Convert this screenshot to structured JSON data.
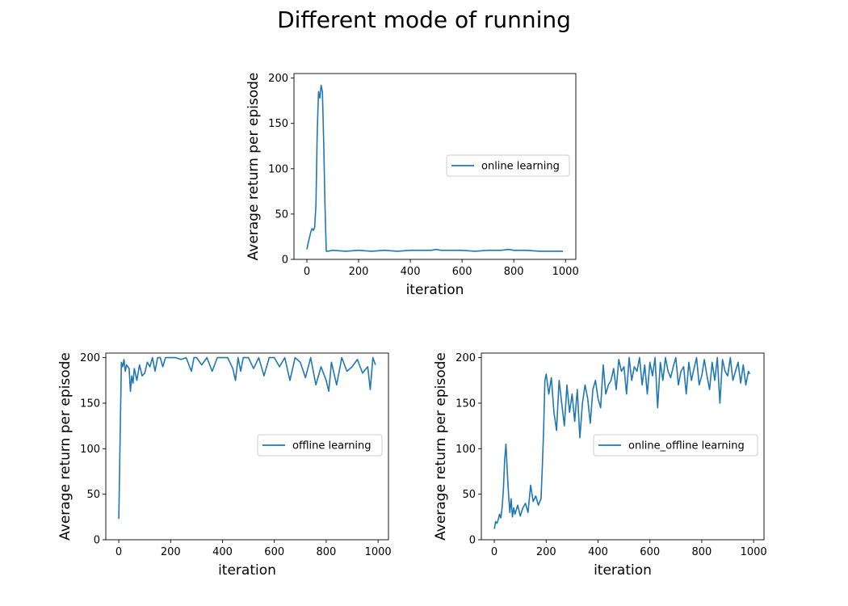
{
  "figure": {
    "title": "Different mode of running"
  },
  "chart_data": [
    {
      "type": "line",
      "xlabel": "iteration",
      "ylabel": "Average return per episode",
      "xlim": [
        -50,
        1040
      ],
      "ylim": [
        0,
        205
      ],
      "xticks": [
        0,
        200,
        400,
        600,
        800,
        1000
      ],
      "yticks": [
        0,
        50,
        100,
        150,
        200
      ],
      "grid": false,
      "legend_position": "center-right",
      "series": [
        {
          "name": "online learning",
          "color": "#1f77b4",
          "x": [
            0,
            5,
            10,
            15,
            20,
            25,
            30,
            35,
            40,
            45,
            50,
            55,
            60,
            65,
            70,
            75,
            80,
            100,
            150,
            200,
            250,
            300,
            350,
            400,
            450,
            480,
            500,
            520,
            560,
            600,
            650,
            700,
            750,
            780,
            800,
            850,
            900,
            950,
            990
          ],
          "y": [
            11,
            18,
            24,
            30,
            34,
            32,
            35,
            60,
            140,
            185,
            178,
            192,
            185,
            130,
            60,
            9,
            9,
            10,
            9,
            10,
            9,
            10,
            9,
            10,
            10,
            10,
            11,
            10,
            10,
            10,
            9,
            10,
            10,
            11,
            10,
            10,
            9,
            9,
            9
          ]
        }
      ]
    },
    {
      "type": "line",
      "xlabel": "iteration",
      "ylabel": "Average return per episode",
      "xlim": [
        -50,
        1040
      ],
      "ylim": [
        0,
        205
      ],
      "xticks": [
        0,
        200,
        400,
        600,
        800,
        1000
      ],
      "yticks": [
        0,
        50,
        100,
        150,
        200
      ],
      "grid": false,
      "legend_position": "center-right",
      "series": [
        {
          "name": "offline learning",
          "color": "#1f77b4",
          "x": [
            0,
            5,
            10,
            15,
            20,
            25,
            30,
            40,
            45,
            50,
            55,
            60,
            70,
            80,
            90,
            100,
            110,
            120,
            130,
            140,
            150,
            160,
            170,
            180,
            200,
            220,
            240,
            260,
            280,
            290,
            300,
            320,
            340,
            360,
            380,
            400,
            420,
            440,
            450,
            460,
            470,
            480,
            500,
            520,
            540,
            560,
            580,
            600,
            620,
            640,
            660,
            680,
            700,
            720,
            740,
            760,
            780,
            800,
            810,
            820,
            840,
            860,
            880,
            900,
            920,
            940,
            960,
            970,
            980,
            990
          ],
          "y": [
            23,
            110,
            195,
            190,
            198,
            185,
            192,
            188,
            163,
            180,
            172,
            188,
            175,
            192,
            180,
            183,
            195,
            190,
            200,
            185,
            200,
            200,
            190,
            200,
            200,
            200,
            198,
            200,
            185,
            200,
            200,
            192,
            200,
            185,
            200,
            200,
            200,
            188,
            175,
            200,
            185,
            200,
            200,
            188,
            200,
            180,
            200,
            200,
            190,
            200,
            175,
            200,
            195,
            178,
            200,
            170,
            190,
            175,
            163,
            195,
            170,
            200,
            185,
            190,
            198,
            183,
            190,
            165,
            200,
            192
          ]
        }
      ]
    },
    {
      "type": "line",
      "xlabel": "iteration",
      "ylabel": "Average return per episode",
      "xlim": [
        -50,
        1040
      ],
      "ylim": [
        0,
        205
      ],
      "xticks": [
        0,
        200,
        400,
        600,
        800,
        1000
      ],
      "yticks": [
        0,
        50,
        100,
        150,
        200
      ],
      "grid": false,
      "legend_position": "center-right",
      "series": [
        {
          "name": "online_offline learning",
          "color": "#1f77b4",
          "x": [
            0,
            5,
            10,
            15,
            20,
            25,
            30,
            35,
            40,
            45,
            50,
            55,
            60,
            65,
            70,
            75,
            80,
            90,
            100,
            110,
            120,
            130,
            140,
            150,
            160,
            170,
            180,
            185,
            190,
            195,
            200,
            210,
            220,
            230,
            240,
            250,
            260,
            270,
            280,
            290,
            300,
            310,
            320,
            330,
            340,
            350,
            360,
            370,
            380,
            390,
            400,
            410,
            420,
            430,
            440,
            450,
            460,
            470,
            480,
            490,
            500,
            510,
            520,
            530,
            540,
            550,
            560,
            570,
            580,
            590,
            600,
            610,
            620,
            630,
            640,
            650,
            660,
            670,
            680,
            690,
            700,
            710,
            720,
            730,
            740,
            750,
            760,
            770,
            780,
            790,
            800,
            810,
            820,
            830,
            840,
            850,
            860,
            870,
            880,
            890,
            900,
            910,
            920,
            930,
            940,
            950,
            960,
            970,
            980,
            985
          ],
          "y": [
            12,
            20,
            18,
            22,
            28,
            24,
            35,
            55,
            88,
            105,
            75,
            50,
            30,
            45,
            25,
            35,
            28,
            38,
            26,
            35,
            40,
            30,
            60,
            42,
            48,
            38,
            45,
            80,
            120,
            175,
            182,
            160,
            178,
            140,
            120,
            175,
            150,
            125,
            170,
            140,
            160,
            130,
            165,
            112,
            150,
            170,
            155,
            128,
            165,
            175,
            155,
            145,
            192,
            160,
            170,
            175,
            188,
            165,
            198,
            185,
            190,
            160,
            200,
            175,
            190,
            185,
            200,
            170,
            192,
            160,
            195,
            180,
            200,
            145,
            195,
            175,
            200,
            185,
            178,
            190,
            200,
            170,
            185,
            190,
            160,
            195,
            175,
            188,
            200,
            170,
            180,
            198,
            180,
            165,
            195,
            175,
            200,
            150,
            198,
            185,
            180,
            200,
            175,
            185,
            195,
            172,
            192,
            170,
            185,
            182
          ]
        }
      ]
    }
  ]
}
